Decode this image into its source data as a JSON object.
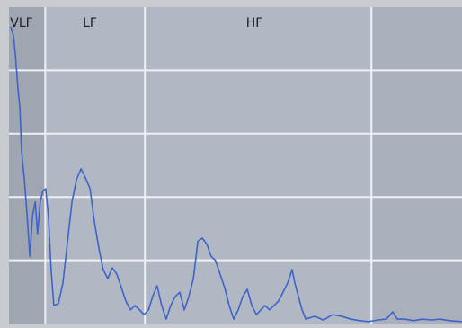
{
  "chart_data": {
    "type": "line",
    "annotations": [
      "VLF",
      "LF",
      "HF"
    ],
    "x": [
      0.4,
      1.0,
      1.4,
      2.0,
      2.4,
      2.8,
      3.4,
      4.0,
      4.6,
      5.2,
      5.8,
      6.3,
      6.9,
      7.5,
      8.1,
      8.7,
      9.3,
      9.9,
      10.9,
      11.9,
      12.9,
      13.9,
      14.9,
      15.9,
      16.9,
      17.9,
      18.8,
      19.8,
      20.8,
      21.8,
      22.8,
      23.8,
      24.8,
      25.8,
      26.8,
      27.8,
      28.8,
      29.8,
      30.8,
      31.7,
      32.7,
      33.7,
      34.7,
      35.7,
      36.7,
      37.7,
      38.7,
      39.7,
      40.7,
      41.7,
      42.7,
      43.7,
      44.6,
      45.6,
      46.6,
      47.6,
      48.6,
      49.6,
      50.6,
      51.6,
      52.6,
      53.6,
      54.6,
      55.6,
      56.5,
      57.5,
      58.5,
      59.5,
      60.5,
      61.5,
      62.5,
      63.1,
      63.9,
      64.7,
      65.5,
      67.5,
      69.4,
      71.4,
      73.4,
      75.4,
      77.4,
      79.4,
      81.3,
      83.3,
      84.7,
      85.7,
      87.3,
      89.3,
      91.3,
      93.3,
      95.2,
      97.2,
      100
    ],
    "series": [
      {
        "color": "#3d63c9",
        "values": [
          93.8,
          90.9,
          85.2,
          73.9,
          68.2,
          54.0,
          45.5,
          34.1,
          21.3,
          34.1,
          38.4,
          28.4,
          38.4,
          42.0,
          42.6,
          34.1,
          17.0,
          5.7,
          6.3,
          12.8,
          25.6,
          38.4,
          45.5,
          48.9,
          46.0,
          42.6,
          32.7,
          24.1,
          17.0,
          14.2,
          17.6,
          15.6,
          11.4,
          7.1,
          4.3,
          5.7,
          4.3,
          2.8,
          4.3,
          8.5,
          11.9,
          5.7,
          1.4,
          5.7,
          8.5,
          9.9,
          4.3,
          8.5,
          14.2,
          26.1,
          27.0,
          25.0,
          21.3,
          19.9,
          15.6,
          11.4,
          5.7,
          1.4,
          4.3,
          8.5,
          10.8,
          5.7,
          2.8,
          4.3,
          5.7,
          4.3,
          5.7,
          7.1,
          9.9,
          12.8,
          17.0,
          12.8,
          8.5,
          4.3,
          1.4,
          2.3,
          1.1,
          2.8,
          2.3,
          1.4,
          0.9,
          0.6,
          1.1,
          1.4,
          3.7,
          1.4,
          1.4,
          0.9,
          1.4,
          1.1,
          1.4,
          0.9,
          0.6
        ]
      }
    ],
    "xlim": [
      0,
      100
    ],
    "ylim": [
      0,
      100
    ],
    "xticks": [
      8,
      30,
      80
    ],
    "yticks": [
      20,
      40,
      60,
      80
    ],
    "grid": true
  }
}
